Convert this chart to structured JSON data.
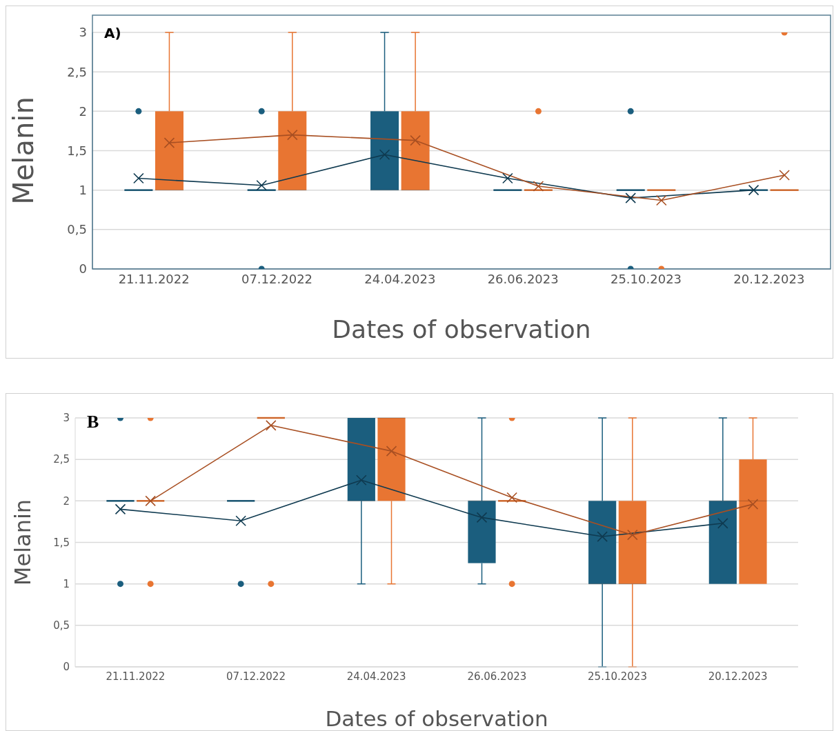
{
  "chart_data": [
    {
      "type": "box",
      "title": "A)",
      "xlabel": "Dates of observation",
      "ylabel": "Melanin",
      "categories": [
        "21.11.2022",
        "07.12.2022",
        "24.04.2023",
        "26.06.2023",
        "25.10.2023",
        "20.12.2023"
      ],
      "ylim": [
        0,
        3
      ],
      "yticks": [
        0,
        {
          "value": 0.5,
          "label": "0,5"
        },
        1,
        {
          "value": 1.5,
          "label": "1,5"
        },
        2,
        {
          "value": 2.5,
          "label": "2,5"
        },
        3
      ],
      "grid": "y",
      "series": [
        {
          "type": "box",
          "color": "#1b5e7e",
          "boxes": [
            {
              "low": 1,
              "q1": 1,
              "median": 1,
              "q3": 1,
              "high": 1,
              "outliers": [
                2
              ]
            },
            {
              "low": 1,
              "q1": 1,
              "median": 1,
              "q3": 1,
              "high": 1,
              "outliers": [
                2,
                0
              ]
            },
            {
              "low": 1,
              "q1": 1,
              "median": 1,
              "q3": 2,
              "high": 3
            },
            {
              "low": 1,
              "q1": 1,
              "median": 1,
              "q3": 1,
              "high": 1
            },
            {
              "low": 1,
              "q1": 1,
              "median": 1,
              "q3": 1,
              "high": 1,
              "outliers": [
                2,
                0
              ]
            },
            {
              "low": 1,
              "q1": 1,
              "median": 1,
              "q3": 1,
              "high": 1
            }
          ]
        },
        {
          "type": "box",
          "color": "#e87532",
          "boxes": [
            {
              "low": 1,
              "q1": 1,
              "median": 1,
              "q3": 2,
              "high": 3
            },
            {
              "low": 1,
              "q1": 1,
              "median": 1,
              "q3": 2,
              "high": 3
            },
            {
              "low": 1,
              "q1": 1,
              "median": 1,
              "q3": 2,
              "high": 3
            },
            {
              "low": 1,
              "q1": 1,
              "median": 1,
              "q3": 1,
              "high": 1,
              "outliers": [
                2
              ]
            },
            {
              "low": 1,
              "q1": 1,
              "median": 1,
              "q3": 1,
              "high": 1,
              "outliers": [
                0
              ]
            },
            {
              "low": 1,
              "q1": 1,
              "median": 1,
              "q3": 1,
              "high": 1,
              "outliers": [
                3
              ]
            }
          ]
        },
        {
          "type": "line",
          "color": "#0f3a50",
          "marker": "cross",
          "values": [
            1.15,
            1.06,
            1.45,
            1.15,
            0.9,
            1.0
          ]
        },
        {
          "type": "line",
          "color": "#a84f22",
          "marker": "cross",
          "values": [
            1.6,
            1.7,
            1.63,
            1.05,
            0.87,
            1.19
          ]
        }
      ]
    },
    {
      "type": "box",
      "title": "B",
      "xlabel": "Dates of observation",
      "ylabel": "Melanin",
      "categories": [
        "21.11.2022",
        "07.12.2022",
        "24.04.2023",
        "26.06.2023",
        "25.10.2023",
        "20.12.2023"
      ],
      "ylim": [
        0,
        3
      ],
      "yticks": [
        0,
        {
          "value": 0.5,
          "label": "0,5"
        },
        1,
        {
          "value": 1.5,
          "label": "1,5"
        },
        2,
        {
          "value": 2.5,
          "label": "2,5"
        },
        3
      ],
      "grid": "y",
      "series": [
        {
          "type": "box",
          "color": "#1b5e7e",
          "boxes": [
            {
              "low": 2,
              "q1": 2,
              "median": 2,
              "q3": 2,
              "high": 2,
              "outliers": [
                3,
                1
              ]
            },
            {
              "low": 2,
              "q1": 2,
              "median": 2,
              "q3": 2,
              "high": 2,
              "outliers": [
                1
              ]
            },
            {
              "low": 1,
              "q1": 2,
              "median": 2,
              "q3": 3,
              "high": 3
            },
            {
              "low": 1,
              "q1": 1.25,
              "median": 2,
              "q3": 2,
              "high": 3
            },
            {
              "low": 0,
              "q1": 1,
              "median": 1,
              "q3": 2,
              "high": 3
            },
            {
              "low": 1,
              "q1": 1,
              "median": 2,
              "q3": 2,
              "high": 3
            }
          ]
        },
        {
          "type": "box",
          "color": "#e87532",
          "boxes": [
            {
              "low": 2,
              "q1": 2,
              "median": 2,
              "q3": 2,
              "high": 2,
              "outliers": [
                3,
                1
              ]
            },
            {
              "low": 3,
              "q1": 3,
              "median": 3,
              "q3": 3,
              "high": 3,
              "outliers": [
                1
              ]
            },
            {
              "low": 1,
              "q1": 2,
              "median": 3,
              "q3": 3,
              "high": 3
            },
            {
              "low": 2,
              "q1": 2,
              "median": 2,
              "q3": 2,
              "high": 2,
              "outliers": [
                3,
                1
              ]
            },
            {
              "low": 0,
              "q1": 1,
              "median": 1,
              "q3": 2,
              "high": 3
            },
            {
              "low": 1,
              "q1": 1,
              "median": 2,
              "q3": 2.5,
              "high": 3
            }
          ]
        },
        {
          "type": "line",
          "color": "#0f3a50",
          "marker": "cross",
          "values": [
            1.9,
            1.76,
            2.25,
            1.8,
            1.57,
            1.73
          ]
        },
        {
          "type": "line",
          "color": "#a84f22",
          "marker": "cross",
          "values": [
            2.0,
            2.91,
            2.6,
            2.04,
            1.59,
            1.96
          ]
        }
      ]
    }
  ]
}
